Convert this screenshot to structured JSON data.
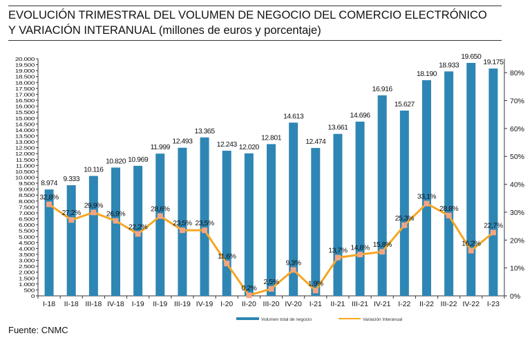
{
  "title_line1": "EVOLUCIÓN TRIMESTRAL DEL VOLUMEN DE NEGOCIO DEL COMERCIO ELECTRÓNICO",
  "title_line2": "Y VARIACIÓN INTERANUAL (millones de euros y porcentaje)",
  "source": "Fuente: CNMC",
  "chart_data": {
    "type": "bar+line",
    "categories": [
      "I-18",
      "II-18",
      "III-18",
      "IV-18",
      "I-19",
      "II-19",
      "III-19",
      "IV-19",
      "I-20",
      "II-20",
      "III-20",
      "IV-20",
      "I-21",
      "II-21",
      "III-21",
      "IV-21",
      "I-22",
      "II-22",
      "III-22",
      "IV-22",
      "I-23"
    ],
    "series": [
      {
        "name": "Volumen total de negocio",
        "type": "bar",
        "axis": "left",
        "color": "#2e86b4",
        "values": [
          8974,
          9333,
          10116,
          10820,
          10969,
          11999,
          12493,
          13365,
          12243,
          12020,
          12801,
          14613,
          12474,
          13661,
          14696,
          16916,
          15627,
          18190,
          18933,
          19650,
          19175
        ],
        "labels": [
          "8.974",
          "9.333",
          "10.116",
          "10.820",
          "10.969",
          "11.999",
          "12.493",
          "13.365",
          "12.243",
          "12.020",
          "12.801",
          "14.613",
          "12.474",
          "13.661",
          "14.696",
          "16.916",
          "15.627",
          "18.190",
          "18.933",
          "19.650",
          "19.175"
        ]
      },
      {
        "name": "Variación Interanual",
        "type": "line",
        "axis": "right",
        "color": "#f5a623",
        "marker_color": "#f4a582",
        "values": [
          32.8,
          27.2,
          29.9,
          26.9,
          22.2,
          28.6,
          23.5,
          23.5,
          11.6,
          0.2,
          2.5,
          9.3,
          1.9,
          13.7,
          14.8,
          15.8,
          25.3,
          33.1,
          28.8,
          16.2,
          22.7
        ],
        "labels": [
          "32,8%",
          "27,2%",
          "29,9%",
          "26,9%",
          "22,2%",
          "28,6%",
          "23,5%",
          "23,5%",
          "11,6%",
          "0,2%",
          "2,5%",
          "9,3%",
          "1,9%",
          "13,7%",
          "14,8%",
          "15,8%",
          "25,3%",
          "33,1%",
          "28,8%",
          "16,2%",
          "22,7%"
        ]
      }
    ],
    "ylim_left": [
      0,
      20000
    ],
    "yticks_left_step": 500,
    "ylim_right": [
      0,
      85
    ],
    "yticks_right": [
      "0%",
      "10%",
      "20%",
      "30%",
      "40%",
      "50%",
      "60%",
      "70%",
      "80%"
    ],
    "legend": "bottom-center",
    "grid": false
  }
}
